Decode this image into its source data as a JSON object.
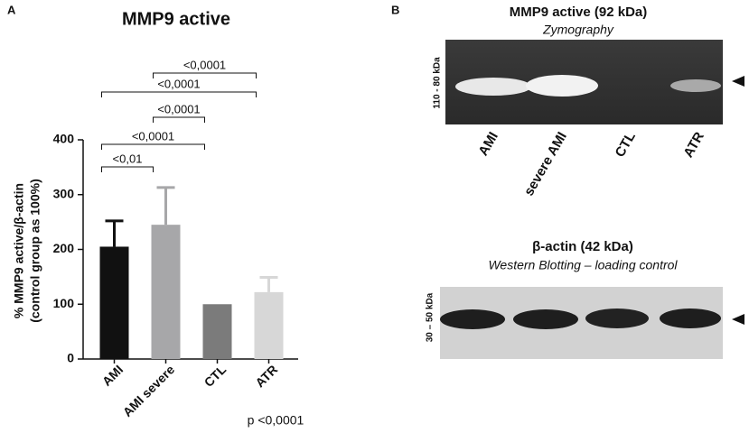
{
  "chart_data": {
    "type": "bar",
    "panel_label": "A",
    "title": "MMP9 active",
    "y_label": [
      "% MMP9 active/β-actin",
      "(control group as 100%)"
    ],
    "categories": [
      "AMI",
      "AMI severe",
      "CTL",
      "ATR"
    ],
    "values": [
      205,
      245,
      100,
      122
    ],
    "errors": [
      47,
      68,
      null,
      27
    ],
    "colors": [
      "#111111",
      "#a7a7a9",
      "#7b7b7b",
      "#d7d7d7"
    ],
    "ylim": [
      0,
      400
    ],
    "yticks": [
      0,
      100,
      200,
      300,
      400
    ],
    "comparisons": [
      {
        "groups": [
          "AMI",
          "AMI severe"
        ],
        "label": "<0,01"
      },
      {
        "groups": [
          "AMI",
          "CTL"
        ],
        "label": "<0,0001"
      },
      {
        "groups": [
          "AMI severe",
          "CTL"
        ],
        "label": "<0,0001"
      },
      {
        "groups": [
          "AMI",
          "ATR"
        ],
        "label": "<0,0001"
      },
      {
        "groups": [
          "AMI severe",
          "ATR"
        ],
        "label": "<0,0001"
      }
    ],
    "footnote": "p <0,0001"
  },
  "panel_b": {
    "panel_label": "B",
    "zymography": {
      "title": "MMP9 active (92 kDa)",
      "subtitle": "Zymography",
      "marker": "110 - 80 kDa",
      "lanes": [
        "AMI",
        "severe AMI",
        "CTL",
        "ATR"
      ]
    },
    "western": {
      "title": "β-actin (42 kDa)",
      "subtitle": "Western Blotting – loading control",
      "marker": "30 – 50 kDa"
    }
  }
}
